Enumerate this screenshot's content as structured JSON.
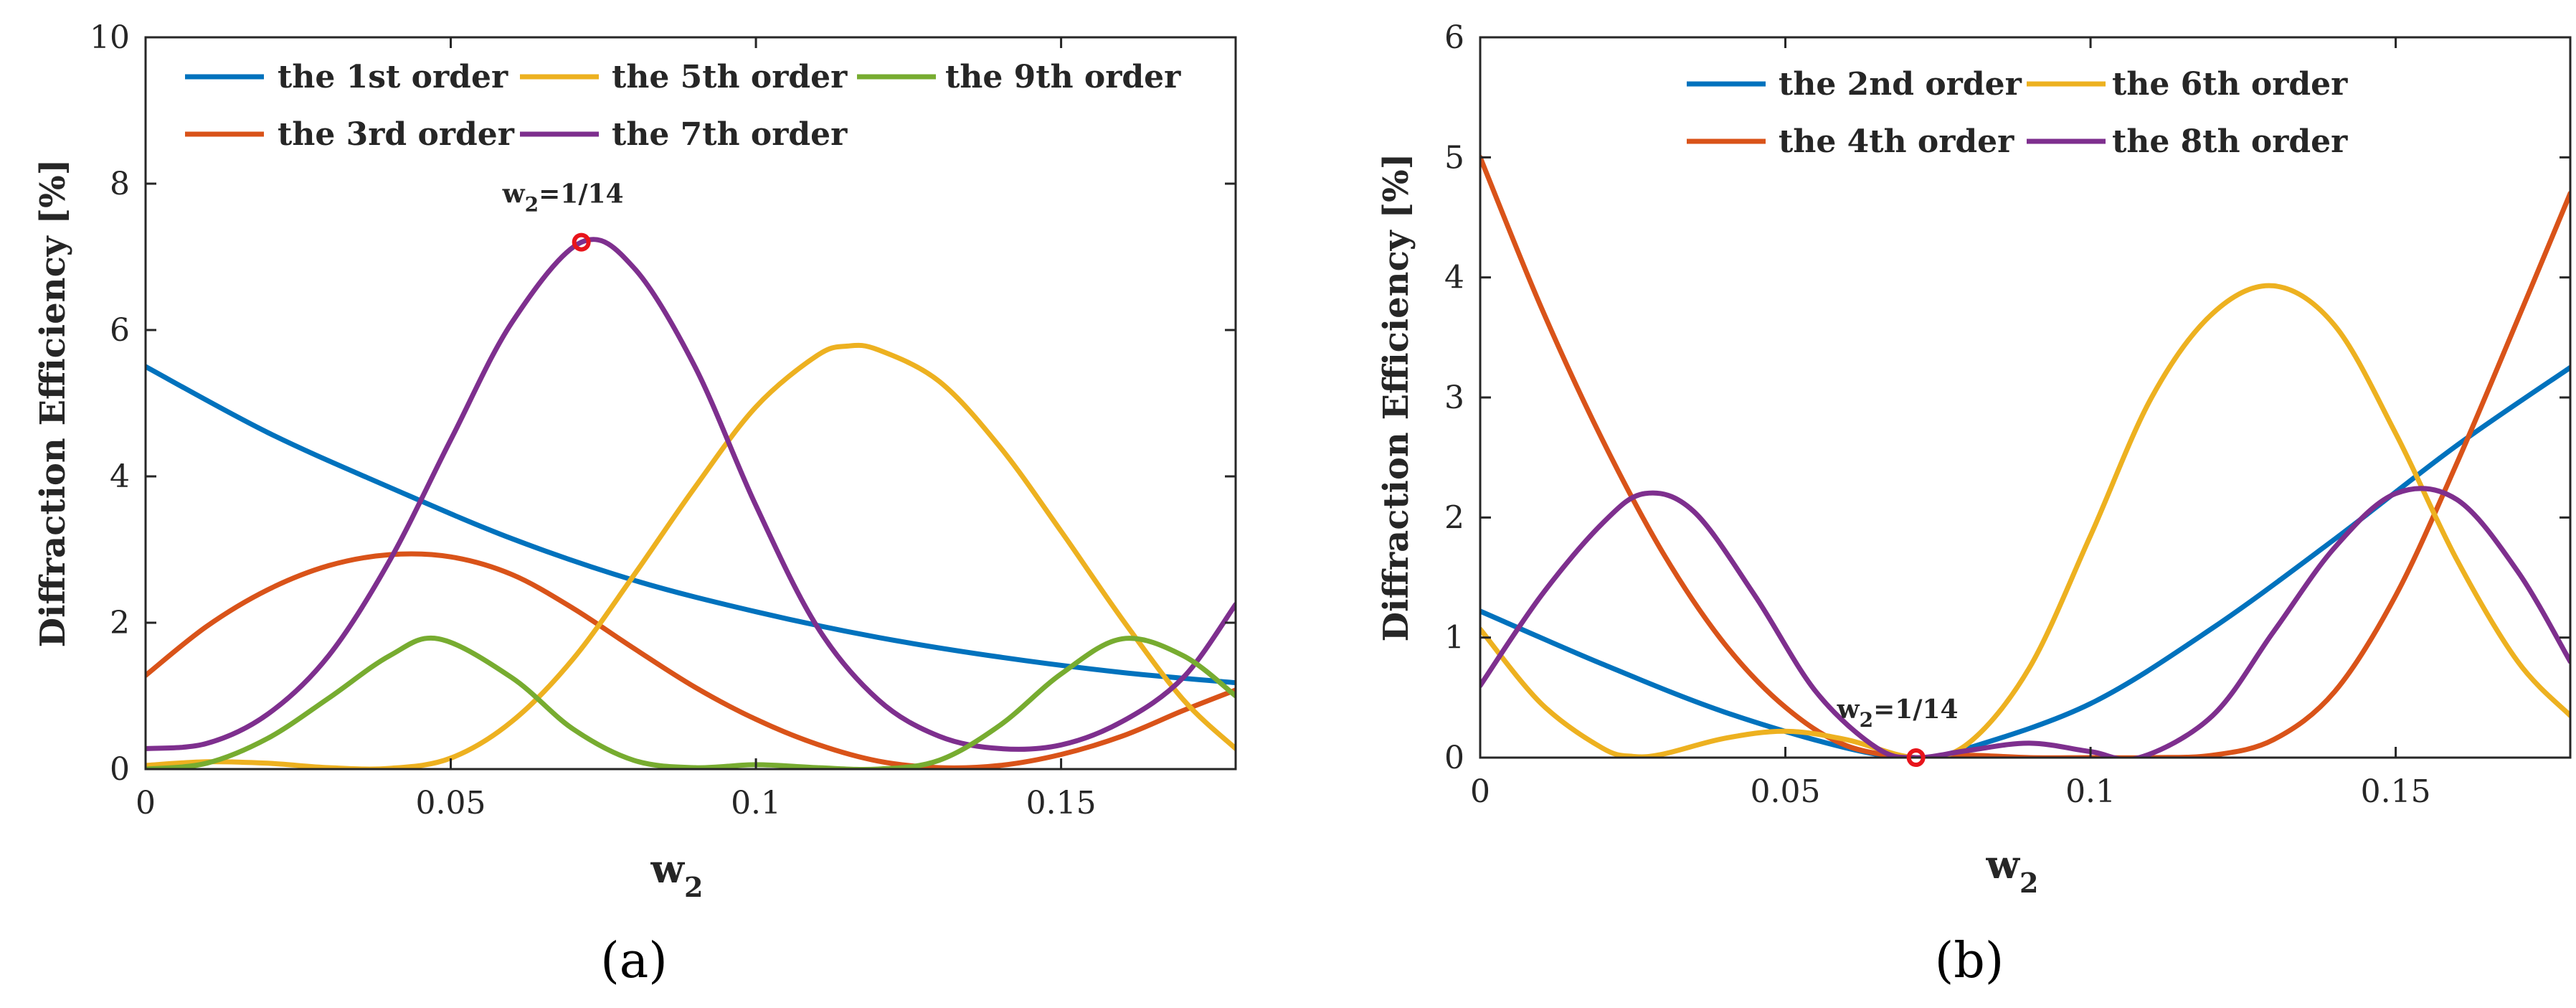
{
  "chart_data": [
    {
      "type": "line",
      "caption": "(a)",
      "ylabel": "Diffraction Efficiency [%]",
      "xlabel": "w",
      "xlabel_sub": "2",
      "xlim": [
        0,
        0.1786
      ],
      "ylim": [
        0,
        10
      ],
      "xticks": [
        0,
        0.05,
        0.1,
        0.15
      ],
      "xtick_labels": [
        "0",
        "0.05",
        "0.1",
        "0.15"
      ],
      "yticks": [
        0,
        2,
        4,
        6,
        8,
        10
      ],
      "ytick_labels": [
        "0",
        "2",
        "4",
        "6",
        "8",
        "10"
      ],
      "legend_position": "top",
      "annotation": {
        "label": "w",
        "label_sub": "2",
        "text": "=1/14",
        "x": 0.0714,
        "y": 7.2
      },
      "series": [
        {
          "name": "the 1st order",
          "color": "#0072BD",
          "x": [
            0,
            0.02,
            0.04,
            0.06,
            0.08,
            0.1,
            0.12,
            0.14,
            0.16,
            0.1786
          ],
          "y": [
            5.5,
            4.6,
            3.85,
            3.15,
            2.58,
            2.15,
            1.8,
            1.53,
            1.32,
            1.18
          ]
        },
        {
          "name": "the 3rd order",
          "color": "#D95319",
          "x": [
            0,
            0.01,
            0.02,
            0.03,
            0.04,
            0.05,
            0.06,
            0.07,
            0.08,
            0.09,
            0.1,
            0.11,
            0.12,
            0.13,
            0.14,
            0.15,
            0.16,
            0.17,
            0.1786
          ],
          "y": [
            1.28,
            1.95,
            2.45,
            2.78,
            2.93,
            2.9,
            2.66,
            2.2,
            1.65,
            1.12,
            0.68,
            0.34,
            0.11,
            0.02,
            0.05,
            0.2,
            0.45,
            0.8,
            1.08
          ]
        },
        {
          "name": "the 5th order",
          "color": "#EDB120",
          "x": [
            0,
            0.01,
            0.02,
            0.03,
            0.04,
            0.05,
            0.06,
            0.07,
            0.08,
            0.09,
            0.1,
            0.11,
            0.115,
            0.12,
            0.13,
            0.14,
            0.15,
            0.16,
            0.17,
            0.1786
          ],
          "y": [
            0.05,
            0.1,
            0.08,
            0.02,
            0.01,
            0.15,
            0.65,
            1.5,
            2.65,
            3.85,
            4.95,
            5.65,
            5.78,
            5.73,
            5.3,
            4.4,
            3.25,
            2.05,
            0.95,
            0.28
          ]
        },
        {
          "name": "the 7th order",
          "color": "#7E2F8E",
          "x": [
            0,
            0.01,
            0.02,
            0.03,
            0.04,
            0.05,
            0.06,
            0.0714,
            0.08,
            0.09,
            0.1,
            0.11,
            0.12,
            0.13,
            0.14,
            0.15,
            0.16,
            0.17,
            0.1786
          ],
          "y": [
            0.28,
            0.35,
            0.75,
            1.55,
            2.85,
            4.5,
            6.1,
            7.2,
            6.85,
            5.5,
            3.6,
            1.95,
            0.95,
            0.45,
            0.28,
            0.33,
            0.65,
            1.25,
            2.25
          ]
        },
        {
          "name": "the 9th order",
          "color": "#77AC30",
          "x": [
            0,
            0.01,
            0.02,
            0.03,
            0.04,
            0.048,
            0.06,
            0.07,
            0.08,
            0.09,
            0.1,
            0.11,
            0.12,
            0.13,
            0.14,
            0.15,
            0.16,
            0.17,
            0.1786
          ],
          "y": [
            0.0,
            0.08,
            0.42,
            0.97,
            1.55,
            1.78,
            1.25,
            0.55,
            0.12,
            0.02,
            0.06,
            0.02,
            0.0,
            0.12,
            0.6,
            1.3,
            1.78,
            1.55,
            1.0
          ]
        }
      ]
    },
    {
      "type": "line",
      "caption": "(b)",
      "ylabel": "Diffraction Efficiency [%]",
      "xlabel": "w",
      "xlabel_sub": "2",
      "xlim": [
        0,
        0.1786
      ],
      "ylim": [
        0,
        6
      ],
      "xticks": [
        0,
        0.05,
        0.1,
        0.15
      ],
      "xtick_labels": [
        "0",
        "0.05",
        "0.1",
        "0.15"
      ],
      "yticks": [
        0,
        1,
        2,
        3,
        4,
        5,
        6
      ],
      "ytick_labels": [
        "0",
        "1",
        "2",
        "3",
        "4",
        "5",
        "6"
      ],
      "legend_position": "top",
      "annotation": {
        "label": "w",
        "label_sub": "2",
        "text": "=1/14",
        "x": 0.0714,
        "y": 0.0
      },
      "series": [
        {
          "name": "the 2nd order",
          "color": "#0072BD",
          "x": [
            0,
            0.02,
            0.04,
            0.06,
            0.0714,
            0.08,
            0.1,
            0.12,
            0.14,
            0.16,
            0.1786
          ],
          "y": [
            1.22,
            0.78,
            0.38,
            0.08,
            0.0,
            0.08,
            0.45,
            1.08,
            1.82,
            2.6,
            3.25
          ]
        },
        {
          "name": "the 4th order",
          "color": "#D95319",
          "x": [
            0,
            0.01,
            0.02,
            0.03,
            0.04,
            0.05,
            0.06,
            0.0714,
            0.08,
            0.09,
            0.1,
            0.11,
            0.12,
            0.13,
            0.14,
            0.15,
            0.16,
            0.17,
            0.1786
          ],
          "y": [
            5.0,
            3.75,
            2.65,
            1.7,
            0.95,
            0.42,
            0.1,
            0.0,
            0.02,
            0.0,
            0.0,
            0.0,
            0.02,
            0.15,
            0.55,
            1.35,
            2.45,
            3.65,
            4.7
          ]
        },
        {
          "name": "the 6th order",
          "color": "#EDB120",
          "x": [
            0,
            0.01,
            0.02,
            0.025,
            0.03,
            0.04,
            0.05,
            0.06,
            0.0714,
            0.08,
            0.09,
            0.1,
            0.11,
            0.12,
            0.13,
            0.14,
            0.15,
            0.16,
            0.17,
            0.1786
          ],
          "y": [
            1.07,
            0.45,
            0.08,
            0.01,
            0.03,
            0.16,
            0.22,
            0.15,
            0.0,
            0.12,
            0.75,
            1.85,
            3.0,
            3.7,
            3.93,
            3.6,
            2.7,
            1.65,
            0.8,
            0.35
          ]
        },
        {
          "name": "the 8th order",
          "color": "#7E2F8E",
          "x": [
            0,
            0.01,
            0.02,
            0.027,
            0.035,
            0.045,
            0.055,
            0.065,
            0.0714,
            0.08,
            0.09,
            0.1,
            0.108,
            0.12,
            0.13,
            0.14,
            0.15,
            0.16,
            0.17,
            0.1786
          ],
          "y": [
            0.6,
            1.35,
            1.95,
            2.2,
            2.05,
            1.35,
            0.55,
            0.08,
            0.0,
            0.06,
            0.12,
            0.05,
            0.0,
            0.35,
            1.05,
            1.75,
            2.2,
            2.15,
            1.55,
            0.8
          ]
        }
      ]
    }
  ]
}
